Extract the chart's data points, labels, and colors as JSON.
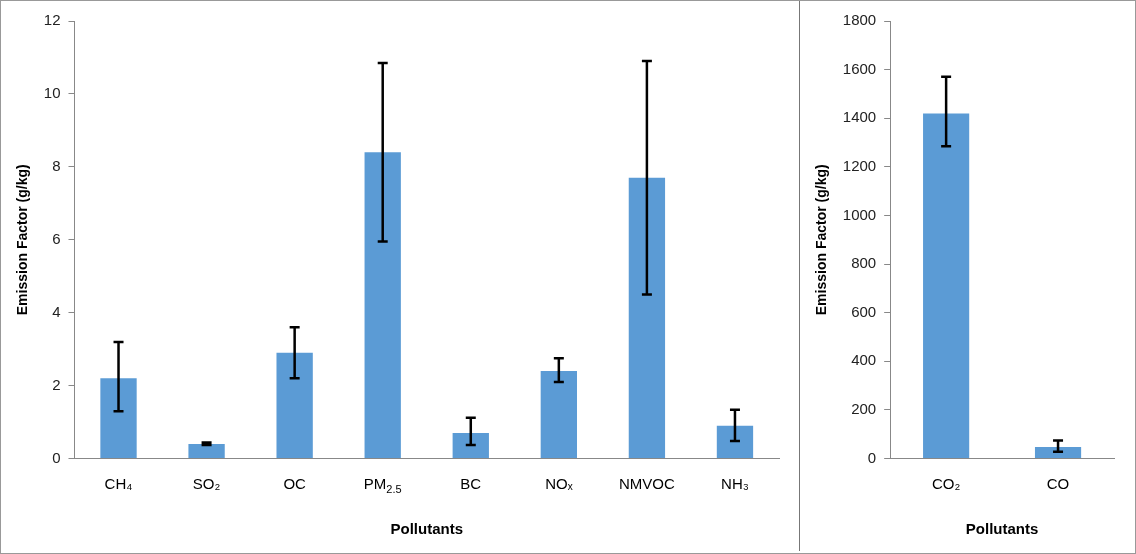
{
  "chart_data": [
    {
      "type": "bar",
      "xlabel": "Pollutants",
      "ylabel": "Emission Factor (g/kg)",
      "categories": [
        "CH₄",
        "SO₂",
        "OC",
        "PM$_{2.5}$",
        "BC",
        "NOₓ",
        "NMVOC",
        "NH₃"
      ],
      "values": [
        2.2,
        0.4,
        2.9,
        8.4,
        0.7,
        2.4,
        7.7,
        0.9
      ],
      "color": "#5b9bd5",
      "errors": [
        [
          1.3,
          3.2
        ],
        [
          0.37,
          0.44
        ],
        [
          2.2,
          3.6
        ],
        [
          5.95,
          10.85
        ],
        [
          0.37,
          1.12
        ],
        [
          2.1,
          2.75
        ],
        [
          4.5,
          10.9
        ],
        [
          0.48,
          1.34
        ]
      ],
      "ylim": [
        0,
        12
      ],
      "yticks": [
        0,
        2,
        4,
        6,
        8,
        10,
        12
      ],
      "grid": false,
      "legend": false
    },
    {
      "type": "bar",
      "xlabel": "Pollutants",
      "ylabel": "Emission Factor (g/kg)",
      "categories": [
        "CO₂",
        "CO"
      ],
      "values": [
        1420,
        48
      ],
      "color": "#5b9bd5",
      "errors": [
        [
          1285,
          1571
        ],
        [
          28,
          74
        ]
      ],
      "ylim": [
        0,
        1800
      ],
      "yticks": [
        0,
        200,
        400,
        600,
        800,
        1000,
        1200,
        1400,
        1600,
        1800
      ],
      "grid": false,
      "legend": false
    }
  ]
}
